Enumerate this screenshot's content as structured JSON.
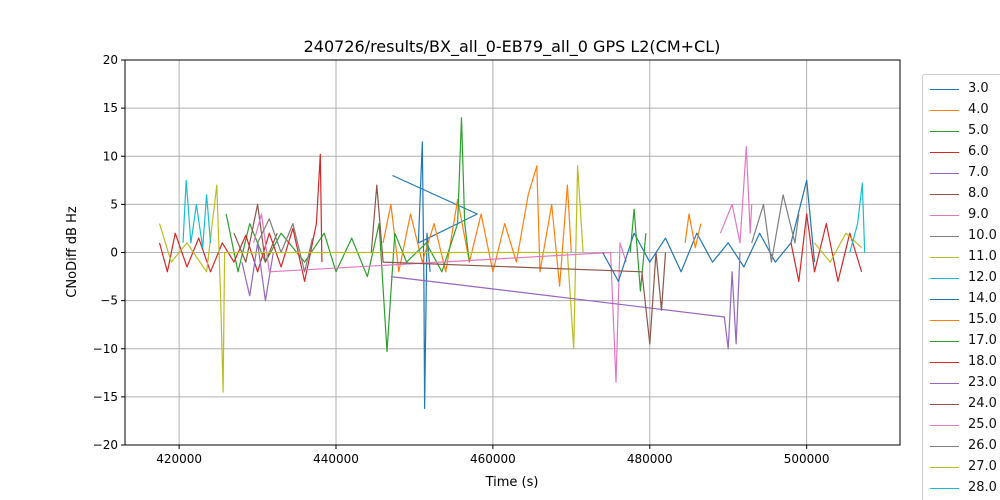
{
  "chart_data": {
    "type": "line",
    "title": "240726/results/BX_all_0-EB79_all_0 GPS L2(CM+CL)",
    "xlabel": "Time (s)",
    "ylabel": "CNoDiff dB Hz",
    "xlim": [
      413100,
      511900
    ],
    "ylim": [
      -20,
      20
    ],
    "xticks": [
      420000,
      440000,
      460000,
      480000,
      500000
    ],
    "yticks": [
      -20,
      -15,
      -10,
      -5,
      0,
      5,
      10,
      15,
      20
    ],
    "grid": true,
    "legend_position": "outside-right",
    "series": [
      {
        "name": "3.0",
        "color": "#1f77b4",
        "points": [
          [
            447200,
            8.0
          ],
          [
            458000,
            4.0
          ],
          [
            450500,
            1
          ],
          [
            451000,
            11.5
          ],
          [
            451200,
            -3
          ],
          [
            451300,
            -16.2
          ],
          [
            451600,
            2
          ],
          [
            452000,
            -2
          ]
        ]
      },
      {
        "name": "4.0",
        "color": "#ff7f0e",
        "points": [
          [
            446000,
            1
          ],
          [
            447000,
            5
          ],
          [
            448000,
            -2
          ],
          [
            449500,
            4
          ],
          [
            451000,
            -1
          ],
          [
            452500,
            3
          ],
          [
            454000,
            -2
          ],
          [
            455500,
            5.5
          ],
          [
            457000,
            -1
          ],
          [
            458500,
            4
          ],
          [
            460000,
            -2
          ],
          [
            461500,
            3
          ],
          [
            463000,
            -1
          ],
          [
            464500,
            6
          ],
          [
            465600,
            9
          ],
          [
            466000,
            -2
          ],
          [
            467500,
            5
          ],
          [
            468500,
            -3.5
          ],
          [
            469500,
            7
          ],
          [
            470000,
            0
          ]
        ]
      },
      {
        "name": "5.0",
        "color": "#2ca02c",
        "points": [
          [
            426000,
            4
          ],
          [
            427500,
            -2
          ],
          [
            429000,
            3
          ],
          [
            431000,
            -1
          ],
          [
            433000,
            2
          ],
          [
            436000,
            -1
          ],
          [
            438500,
            2
          ],
          [
            440000,
            -2
          ],
          [
            442000,
            1.5
          ],
          [
            444000,
            -2.5
          ],
          [
            445500,
            3
          ],
          [
            446500,
            -10.3
          ],
          [
            447500,
            2
          ],
          [
            449000,
            -1
          ],
          [
            451500,
            1
          ],
          [
            453500,
            -2
          ],
          [
            455500,
            3
          ],
          [
            456000,
            14
          ],
          [
            456400,
            3
          ],
          [
            457000,
            -1
          ]
        ]
      },
      {
        "name": "6.0",
        "color": "#d62728",
        "points": [
          [
            417500,
            1
          ],
          [
            418500,
            -2
          ],
          [
            419500,
            2
          ],
          [
            421000,
            -1.5
          ],
          [
            422500,
            1.5
          ],
          [
            424000,
            -2
          ],
          [
            425500,
            1
          ],
          [
            427000,
            -1
          ],
          [
            428500,
            1.8
          ],
          [
            430000,
            -2
          ],
          [
            431500,
            2
          ],
          [
            433000,
            -1.5
          ],
          [
            434500,
            2.5
          ],
          [
            436000,
            -3
          ],
          [
            437500,
            3
          ],
          [
            438000,
            10.2
          ],
          [
            438200,
            -1
          ]
        ]
      },
      {
        "name": "7.0",
        "color": "#9467bd",
        "points": [
          [
            428000,
            -1
          ],
          [
            429000,
            -4.5
          ],
          [
            430000,
            1
          ],
          [
            431000,
            -5
          ],
          [
            432000,
            0
          ]
        ]
      },
      {
        "name": "8.0",
        "color": "#8c564b",
        "points": [
          [
            427000,
            2
          ],
          [
            428500,
            -1
          ],
          [
            430000,
            5
          ],
          [
            431000,
            -1
          ],
          [
            432500,
            2
          ]
        ]
      },
      {
        "name": "9.0",
        "color": "#e377c2",
        "points": [
          [
            429500,
            1
          ],
          [
            430500,
            4
          ],
          [
            431500,
            -2
          ],
          [
            475000,
            0
          ],
          [
            475700,
            -13.5
          ],
          [
            476200,
            1
          ],
          [
            477000,
            -1
          ]
        ]
      },
      {
        "name": "10.0",
        "color": "#7f7f7f",
        "points": [
          [
            430000,
            1
          ],
          [
            431500,
            3.5
          ],
          [
            433000,
            0
          ],
          [
            434500,
            3
          ],
          [
            436000,
            -2
          ],
          [
            437000,
            1.5
          ]
        ]
      },
      {
        "name": "11.0",
        "color": "#bcbd22",
        "points": [
          [
            417500,
            3
          ],
          [
            419000,
            -1
          ],
          [
            421000,
            1
          ],
          [
            423500,
            -2
          ],
          [
            424800,
            7
          ],
          [
            425300,
            -5
          ],
          [
            425600,
            -14.5
          ],
          [
            425800,
            0
          ],
          [
            469500,
            0
          ],
          [
            470300,
            -10
          ],
          [
            470800,
            9
          ],
          [
            471500,
            0
          ]
        ]
      },
      {
        "name": "12.0",
        "color": "#17becf",
        "points": [
          [
            420500,
            1
          ],
          [
            420900,
            7.5
          ],
          [
            421500,
            1
          ],
          [
            422200,
            5
          ],
          [
            423000,
            0.5
          ],
          [
            423500,
            6
          ],
          [
            424000,
            1
          ]
        ]
      },
      {
        "name": "14.0",
        "color": "#1f77b4",
        "points": [
          [
            474000,
            0
          ],
          [
            476000,
            -3
          ],
          [
            478000,
            2
          ],
          [
            480000,
            -1
          ],
          [
            482000,
            1.5
          ],
          [
            484000,
            -2
          ],
          [
            486000,
            2
          ],
          [
            488000,
            -1
          ],
          [
            490000,
            1
          ],
          [
            492000,
            -1.5
          ],
          [
            494000,
            2
          ],
          [
            496000,
            -1
          ],
          [
            498000,
            1
          ],
          [
            500000,
            7.5
          ],
          [
            501000,
            -1
          ]
        ]
      },
      {
        "name": "15.0",
        "color": "#ff7f0e",
        "points": [
          [
            484500,
            1
          ],
          [
            485000,
            4
          ],
          [
            485800,
            0.5
          ],
          [
            486500,
            3
          ]
        ]
      },
      {
        "name": "17.0",
        "color": "#2ca02c",
        "points": [
          [
            477500,
            0
          ],
          [
            478000,
            4.5
          ],
          [
            478800,
            -4
          ],
          [
            479500,
            2
          ]
        ]
      },
      {
        "name": "18.0",
        "color": "#d62728",
        "points": [
          [
            498000,
            1
          ],
          [
            499000,
            -3
          ],
          [
            500000,
            4
          ],
          [
            501000,
            -2
          ],
          [
            502500,
            3
          ],
          [
            504000,
            -3
          ],
          [
            505500,
            2
          ],
          [
            507000,
            -2
          ]
        ]
      },
      {
        "name": "23.0",
        "color": "#9467bd",
        "points": [
          [
            447000,
            -2.5
          ],
          [
            489500,
            -6.7
          ],
          [
            490000,
            -10
          ],
          [
            490500,
            -2
          ],
          [
            491000,
            -9.5
          ],
          [
            491500,
            0
          ]
        ]
      },
      {
        "name": "24.0",
        "color": "#8c564b",
        "points": [
          [
            444500,
            0
          ],
          [
            445200,
            7
          ],
          [
            446000,
            -1
          ],
          [
            479000,
            -2
          ],
          [
            480000,
            -9.5
          ],
          [
            480800,
            0
          ],
          [
            481500,
            -6
          ],
          [
            482000,
            0
          ]
        ]
      },
      {
        "name": "25.0",
        "color": "#e377c2",
        "points": [
          [
            489000,
            2
          ],
          [
            490500,
            5
          ],
          [
            491500,
            1
          ],
          [
            492300,
            11
          ],
          [
            492800,
            2
          ],
          [
            493000,
            5
          ]
        ]
      },
      {
        "name": "26.0",
        "color": "#7f7f7f",
        "points": [
          [
            493000,
            1
          ],
          [
            494500,
            5
          ],
          [
            495500,
            -1
          ],
          [
            497000,
            6
          ],
          [
            498500,
            1
          ],
          [
            499000,
            4
          ]
        ]
      },
      {
        "name": "27.0",
        "color": "#bcbd22",
        "points": [
          [
            501000,
            1
          ],
          [
            503000,
            -1
          ],
          [
            505000,
            2
          ],
          [
            507000,
            0.5
          ]
        ]
      },
      {
        "name": "28.0",
        "color": "#17becf",
        "points": [
          [
            505500,
            0
          ],
          [
            506500,
            3
          ],
          [
            507100,
            7.2
          ],
          [
            507400,
            0
          ]
        ]
      }
    ]
  }
}
